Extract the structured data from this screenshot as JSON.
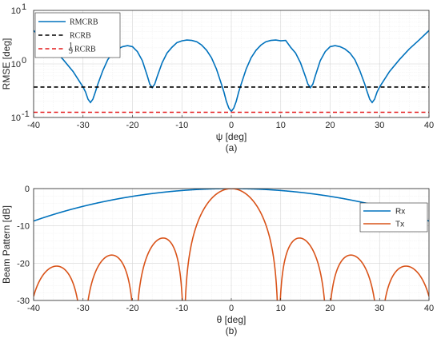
{
  "chart_data": [
    {
      "type": "line",
      "caption": "(a)",
      "xlabel": "ψ [deg]",
      "ylabel": "RMSE [deg]",
      "xlim": [
        -40,
        40
      ],
      "ylim_log10": [
        -1,
        1
      ],
      "yscale": "log",
      "grid": true,
      "legend_position": "top-left",
      "xticks": [
        "-40",
        "-30",
        "-20",
        "-10",
        "0",
        "10",
        "20",
        "30",
        "40"
      ],
      "yticks": [
        {
          "base": "10",
          "exp": "1",
          "value": 10
        },
        {
          "base": "10",
          "exp": "0",
          "value": 1
        },
        {
          "base": "10",
          "exp": "-1",
          "value": 0.1
        }
      ],
      "x": [
        -40,
        -38,
        -36,
        -34,
        -32,
        -30,
        -29.5,
        -29,
        -28.5,
        -28,
        -27.5,
        -27,
        -26,
        -25,
        -24,
        -23,
        -22,
        -21,
        -20,
        -19,
        -18,
        -17,
        -16.5,
        -16,
        -15.5,
        -15,
        -14,
        -13,
        -12,
        -11,
        -10,
        -9,
        -8,
        -7,
        -6,
        -5,
        -4,
        -3,
        -2,
        -1.5,
        -1,
        -0.5,
        0,
        0.5,
        1,
        1.5,
        2,
        3,
        4,
        5,
        6,
        7,
        8,
        9,
        10,
        11,
        12,
        13,
        14,
        15,
        15.5,
        16,
        16.5,
        17,
        18,
        19,
        20,
        21,
        22,
        23,
        24,
        25,
        26,
        27,
        27.5,
        28,
        28.5,
        29,
        29.5,
        30,
        32,
        34,
        36,
        38,
        40
      ],
      "series": [
        {
          "name": "RMCRB",
          "color": "#0072BD",
          "style": "solid",
          "values": [
            4.2,
            2.8,
            1.9,
            1.2,
            0.72,
            0.37,
            0.3,
            0.22,
            0.19,
            0.22,
            0.3,
            0.42,
            0.75,
            1.2,
            1.6,
            1.9,
            2.1,
            2.2,
            2.1,
            1.7,
            1.15,
            0.6,
            0.42,
            0.36,
            0.42,
            0.58,
            1.05,
            1.6,
            2.05,
            2.5,
            2.7,
            2.8,
            2.75,
            2.6,
            2.25,
            1.8,
            1.3,
            0.8,
            0.42,
            0.3,
            0.2,
            0.15,
            0.13,
            0.15,
            0.2,
            0.3,
            0.42,
            0.8,
            1.3,
            1.8,
            2.25,
            2.6,
            2.75,
            2.8,
            2.7,
            2.75,
            2.05,
            1.6,
            1.05,
            0.58,
            0.42,
            0.36,
            0.42,
            0.6,
            1.15,
            1.7,
            2.1,
            2.2,
            2.1,
            1.9,
            1.6,
            1.2,
            0.75,
            0.42,
            0.3,
            0.22,
            0.19,
            0.22,
            0.3,
            0.37,
            0.72,
            1.2,
            1.9,
            2.8,
            4.2
          ]
        },
        {
          "name": "RCRB",
          "color": "#000000",
          "style": "dashed",
          "constant": 0.37
        },
        {
          "name": "RCRB",
          "name_prefix": "1/9",
          "color": "#E41A1C",
          "style": "dashed",
          "constant": 0.125
        }
      ]
    },
    {
      "type": "line",
      "caption": "(b)",
      "xlabel": "θ [deg]",
      "ylabel": "Beam Pattern [dB]",
      "xlim": [
        -40,
        40
      ],
      "ylim": [
        -30,
        0
      ],
      "grid": true,
      "legend_position": "right",
      "xticks": [
        "-40",
        "-30",
        "-20",
        "-10",
        "0",
        "10",
        "20",
        "30",
        "40"
      ],
      "yticks": [
        "0",
        "-10",
        "-20",
        "-30"
      ],
      "series": [
        {
          "name": "Rx",
          "color": "#0072BD",
          "style": "solid",
          "model": {
            "kind": "sinc_array",
            "elements": 2.18,
            "spacing": 0.5
          }
        },
        {
          "name": "Tx",
          "color": "#D95319",
          "style": "solid",
          "model": {
            "kind": "sinc_array",
            "elements": 3.0,
            "spacing": 2.0
          }
        }
      ]
    }
  ]
}
